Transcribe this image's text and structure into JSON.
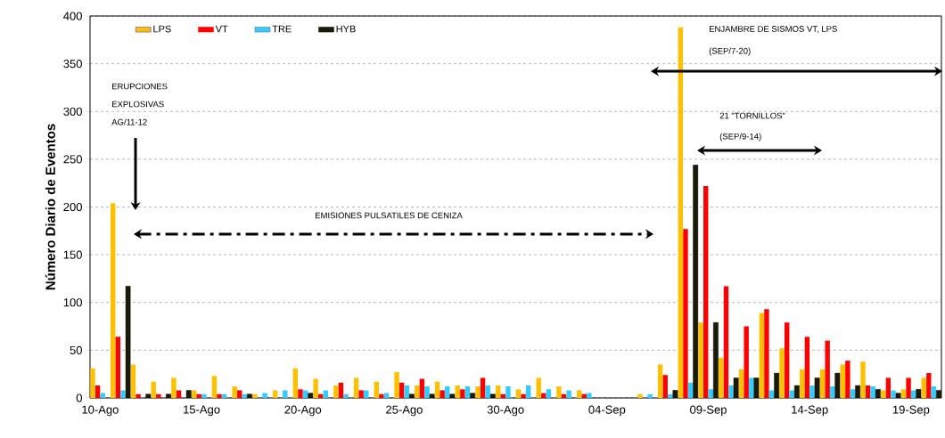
{
  "chart_data": {
    "type": "bar",
    "ylabel": "Número Diario de Eventos",
    "categories": [
      "10-Ago",
      null,
      null,
      null,
      null,
      "15-Ago",
      null,
      null,
      null,
      null,
      "20-Ago",
      null,
      null,
      null,
      null,
      "25-Ago",
      null,
      null,
      null,
      null,
      "30-Ago",
      null,
      null,
      null,
      null,
      "04-Sep",
      null,
      null,
      null,
      null,
      "09-Sep",
      null,
      null,
      null,
      null,
      "14-Sep",
      null,
      null,
      null,
      null,
      "19-Sep",
      null
    ],
    "series": [
      {
        "name": "LPS",
        "color": "#ffc000",
        "values": [
          31,
          204,
          35,
          17,
          21,
          8,
          23,
          12,
          4,
          8,
          31,
          20,
          13,
          21,
          17,
          27,
          13,
          17,
          13,
          12,
          13,
          9,
          21,
          12,
          8,
          null,
          null,
          4,
          35,
          388,
          79,
          42,
          30,
          89,
          52,
          30,
          30,
          35,
          38,
          8,
          9,
          21
        ]
      },
      {
        "name": "VT",
        "color": "#ff0000",
        "values": [
          13,
          64,
          4,
          4,
          8,
          4,
          4,
          8,
          null,
          null,
          9,
          4,
          16,
          8,
          4,
          16,
          20,
          8,
          9,
          21,
          4,
          4,
          5,
          4,
          4,
          null,
          null,
          null,
          24,
          177,
          222,
          117,
          75,
          93,
          79,
          64,
          60,
          39,
          13,
          21,
          21,
          26
        ]
      },
      {
        "name": "TRE",
        "color": "#33ccff",
        "values": [
          5,
          8,
          null,
          null,
          null,
          4,
          4,
          4,
          5,
          8,
          8,
          8,
          4,
          8,
          5,
          13,
          12,
          12,
          12,
          13,
          12,
          13,
          9,
          8,
          5,
          null,
          null,
          4,
          4,
          16,
          9,
          13,
          21,
          8,
          8,
          13,
          12,
          9,
          12,
          8,
          8,
          12
        ]
      },
      {
        "name": "HYB",
        "color": "#1a1a08",
        "values": [
          null,
          117,
          4,
          4,
          8,
          null,
          null,
          4,
          null,
          null,
          5,
          null,
          null,
          null,
          null,
          4,
          4,
          4,
          5,
          4,
          null,
          null,
          null,
          null,
          null,
          null,
          null,
          null,
          8,
          244,
          79,
          21,
          21,
          26,
          13,
          21,
          26,
          13,
          9,
          5,
          9,
          8
        ]
      }
    ],
    "ylim": [
      0,
      400
    ],
    "yticks": [
      0,
      50,
      100,
      150,
      200,
      250,
      300,
      350,
      400
    ],
    "grid": "y",
    "legend": "top left",
    "annotations": [
      "ERUPCIONES",
      "EXPLOSIVAS",
      "AG/11-12",
      "EMISIONES PULSATILES DE CENIZA",
      "ENJAMBRE DE SISMOS VT, LPS",
      "(SEP/7-20)",
      "21 \"TORNILLOS\"",
      "(SEP/9-14)"
    ]
  }
}
